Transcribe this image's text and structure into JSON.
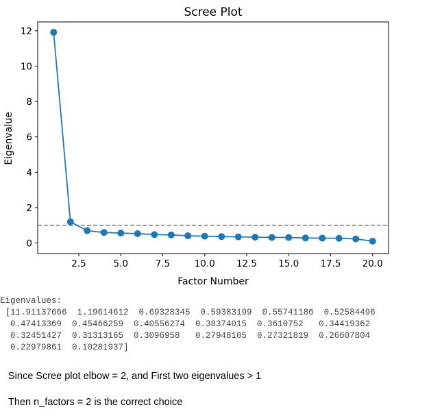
{
  "chart_data": {
    "type": "line",
    "title": "Scree Plot",
    "xlabel": "Factor Number",
    "ylabel": "Eigenvalue",
    "x": [
      1,
      2,
      3,
      4,
      5,
      6,
      7,
      8,
      9,
      10,
      11,
      12,
      13,
      14,
      15,
      16,
      17,
      18,
      19,
      20
    ],
    "values": [
      11.91137666,
      1.19614612,
      0.69328345,
      0.59383199,
      0.55741186,
      0.52584496,
      0.47413369,
      0.45466259,
      0.40556274,
      0.38374015,
      0.3610752,
      0.34419362,
      0.32451427,
      0.31313165,
      0.3096958,
      0.27948105,
      0.27321819,
      0.26607804,
      0.22979861,
      0.10281937
    ],
    "xlim": [
      0.05,
      20.95
    ],
    "ylim": [
      -0.6,
      12.5
    ],
    "xticks": [
      "2.5",
      "5.0",
      "7.5",
      "10.0",
      "12.5",
      "15.0",
      "17.5",
      "20.0"
    ],
    "yticks": [
      "0",
      "2",
      "4",
      "6",
      "8",
      "10",
      "12"
    ],
    "reference_line": {
      "y": 1,
      "style": "dashed",
      "color": "#808080"
    },
    "series_color": "#1f77b4",
    "grid": false
  },
  "output": {
    "heading": "Eigenvalues:",
    "lines": [
      " [11.91137666  1.19614612  0.69328345  0.59383199  0.55741186  0.52584496",
      "  0.47413369  0.45466259  0.40556274  0.38374015  0.3610752   0.34419362",
      "  0.32451427  0.31313165  0.3096958   0.27948105  0.27321819  0.26607804",
      "  0.22979861  0.10281937]"
    ]
  },
  "notes": {
    "line1": "Since Scree plot elbow = 2, and First two eigenvalues > 1",
    "line2": "Then n_factors = 2 is the correct choice"
  }
}
